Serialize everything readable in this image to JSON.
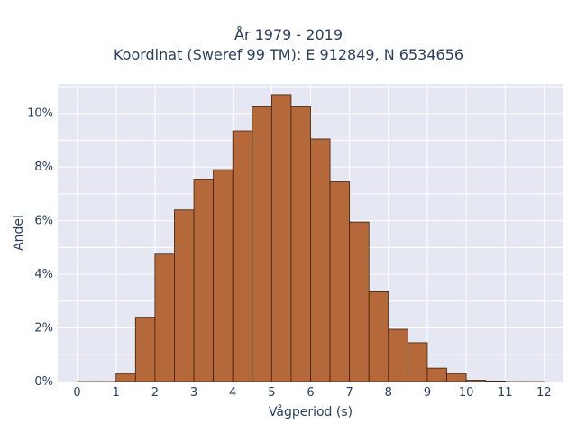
{
  "chart_data": {
    "type": "bar",
    "title": "År 1979 - 2019",
    "subtitle": "Koordinat (Sweref 99 TM): E 912849, N 6534656",
    "xlabel": "Vågperiod (s)",
    "ylabel": "Andel",
    "bin_width": 0.5,
    "x": [
      0,
      0.5,
      1,
      1.5,
      2,
      2.5,
      3,
      3.5,
      4,
      4.5,
      5,
      5.5,
      6,
      6.5,
      7,
      7.5,
      8,
      8.5,
      9,
      9.5,
      10,
      10.5,
      11,
      11.5
    ],
    "values": [
      0.0,
      0.0,
      0.3,
      2.4,
      4.75,
      6.4,
      7.55,
      7.9,
      9.35,
      10.25,
      10.7,
      10.25,
      9.05,
      7.45,
      5.95,
      3.35,
      1.95,
      1.45,
      0.5,
      0.3,
      0.05,
      0.02,
      0.0,
      0.0
    ],
    "xlim": [
      -0.5,
      12.5
    ],
    "ylim": [
      0,
      11.1
    ],
    "xticks": [
      "0",
      "1",
      "2",
      "3",
      "4",
      "5",
      "6",
      "7",
      "8",
      "9",
      "10",
      "11",
      "12"
    ],
    "yticks": [
      "0%",
      "2%",
      "4%",
      "6%",
      "8%",
      "10%"
    ],
    "grid": true,
    "bar_color": "#b5693a",
    "bar_edge_color": "#3a2010",
    "plot_background": "#e5e8f2"
  }
}
